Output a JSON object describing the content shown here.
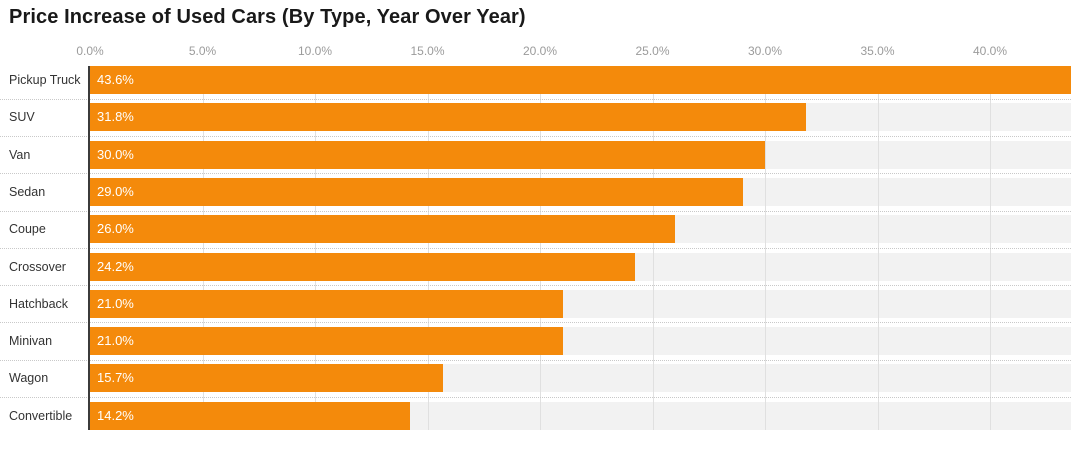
{
  "title": "Price Increase of Used Cars (By Type, Year Over Year)",
  "chart_data": {
    "type": "bar",
    "orientation": "horizontal",
    "title": "Price Increase of Used Cars (By Type, Year Over Year)",
    "categories": [
      "Pickup Truck",
      "SUV",
      "Van",
      "Sedan",
      "Coupe",
      "Crossover",
      "Hatchback",
      "Minivan",
      "Wagon",
      "Convertible"
    ],
    "values": [
      43.6,
      31.8,
      30.0,
      29.0,
      26.0,
      24.2,
      21.0,
      21.0,
      15.7,
      14.2
    ],
    "value_labels": [
      "43.6%",
      "31.8%",
      "30.0%",
      "29.0%",
      "26.0%",
      "24.2%",
      "21.0%",
      "21.0%",
      "15.7%",
      "14.2%"
    ],
    "x_ticks": [
      {
        "value": 0,
        "label": "0.0%"
      },
      {
        "value": 5,
        "label": "5.0%"
      },
      {
        "value": 10,
        "label": "10.0%"
      },
      {
        "value": 15,
        "label": "15.0%"
      },
      {
        "value": 20,
        "label": "20.0%"
      },
      {
        "value": 25,
        "label": "25.0%"
      },
      {
        "value": 30,
        "label": "30.0%"
      },
      {
        "value": 35,
        "label": "35.0%"
      },
      {
        "value": 40,
        "label": "40.0%"
      }
    ],
    "xlim": [
      0,
      43.6
    ],
    "grid": true,
    "legend": "none",
    "colors": {
      "bar": "#F48A0B",
      "track": "#F2F2F2",
      "gridline": "#E0E0E0",
      "separator": "#C9C9C9",
      "axis_line": "#3B3B3B",
      "tick_text": "#9B9B9B",
      "category_text": "#333333",
      "value_text": "#FFFFFF",
      "title_text": "#191919"
    }
  }
}
